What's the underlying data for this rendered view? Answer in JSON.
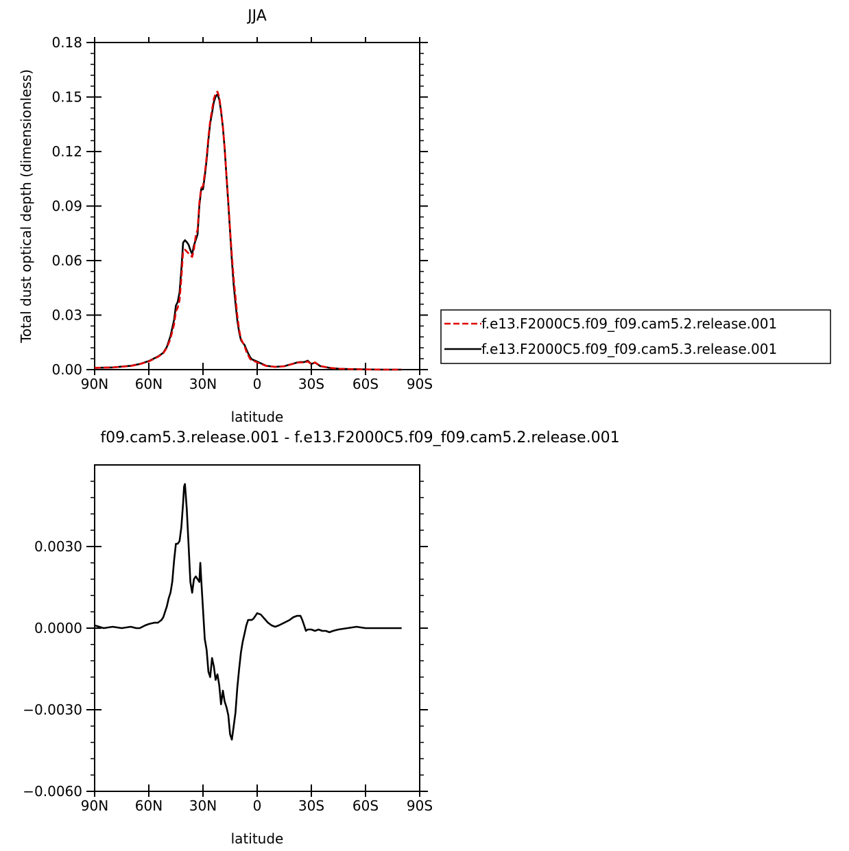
{
  "chart_data": [
    {
      "type": "line",
      "title": "JJA",
      "xlabel": "latitude",
      "ylabel": "Total dust optical depth (dimensionless)",
      "xlim": [
        90,
        -90
      ],
      "ylim": [
        0,
        0.18
      ],
      "xticks": [
        90,
        60,
        30,
        0,
        -30,
        -60,
        -90
      ],
      "xtick_labels": [
        "90N",
        "60N",
        "30N",
        "0",
        "30S",
        "60S",
        "90S"
      ],
      "yticks": [
        0,
        0.03,
        0.06,
        0.09,
        0.12,
        0.15,
        0.18
      ],
      "ytick_labels": [
        "0.00",
        "0.03",
        "0.06",
        "0.09",
        "0.12",
        "0.15",
        "0.18"
      ],
      "legend": "right",
      "series": [
        {
          "name": "f.e13.F2000C5.f09_f09.cam5.2.release.001",
          "color": "#e00000",
          "dash": "dashed",
          "x": [
            90,
            80,
            70,
            65,
            60,
            55,
            52,
            50,
            48,
            46,
            45,
            44,
            43,
            42,
            41,
            40,
            39,
            38,
            37,
            36,
            35,
            34,
            33,
            32,
            31,
            30,
            29,
            28,
            27,
            26,
            25,
            24,
            23,
            22,
            21,
            20,
            19,
            18,
            17,
            16,
            15,
            14,
            13,
            12,
            11,
            10,
            9,
            8,
            7,
            6,
            5,
            4,
            3,
            2,
            0,
            -5,
            -10,
            -15,
            -20,
            -22,
            -24,
            -26,
            -28,
            -30,
            -32,
            -35,
            -40,
            -45,
            -50,
            -60,
            -70,
            -80
          ],
          "values": [
            0.001,
            0.0012,
            0.002,
            0.003,
            0.0045,
            0.007,
            0.009,
            0.012,
            0.017,
            0.025,
            0.032,
            0.034,
            0.038,
            0.05,
            0.065,
            0.066,
            0.065,
            0.064,
            0.063,
            0.062,
            0.066,
            0.074,
            0.077,
            0.092,
            0.1,
            0.101,
            0.108,
            0.117,
            0.128,
            0.137,
            0.143,
            0.149,
            0.152,
            0.153,
            0.15,
            0.143,
            0.134,
            0.122,
            0.107,
            0.093,
            0.077,
            0.063,
            0.05,
            0.04,
            0.03,
            0.022,
            0.017,
            0.015,
            0.013,
            0.01,
            0.008,
            0.006,
            0.005,
            0.0048,
            0.004,
            0.002,
            0.0015,
            0.0018,
            0.0032,
            0.0038,
            0.004,
            0.0038,
            0.0045,
            0.003,
            0.004,
            0.002,
            0.001,
            0.0005,
            0.0003,
            0.0001,
            0.0,
            0.0
          ]
        },
        {
          "name": "f.e13.F2000C5.f09_f09.cam5.3.release.001",
          "color": "#000000",
          "dash": "solid",
          "x": [
            90,
            80,
            70,
            65,
            60,
            55,
            52,
            50,
            48,
            46,
            45,
            44,
            43,
            42,
            41,
            40,
            39,
            38,
            37,
            36,
            35,
            34,
            33,
            32,
            31,
            30,
            29,
            28,
            27,
            26,
            25,
            24,
            23,
            22,
            21,
            20,
            19,
            18,
            17,
            16,
            15,
            14,
            13,
            12,
            11,
            10,
            9,
            8,
            7,
            6,
            5,
            4,
            3,
            2,
            0,
            -5,
            -10,
            -15,
            -20,
            -22,
            -24,
            -26,
            -28,
            -30,
            -32,
            -35,
            -40,
            -45,
            -50,
            -60,
            -70,
            -80
          ],
          "values": [
            0.001,
            0.0012,
            0.0021,
            0.0031,
            0.0047,
            0.0072,
            0.0093,
            0.0125,
            0.0185,
            0.0275,
            0.0352,
            0.0372,
            0.0425,
            0.055,
            0.0698,
            0.0712,
            0.0702,
            0.0688,
            0.0658,
            0.0636,
            0.0684,
            0.0714,
            0.0744,
            0.0902,
            0.0993,
            0.0992,
            0.1064,
            0.1154,
            0.1264,
            0.1356,
            0.1412,
            0.1472,
            0.1502,
            0.1515,
            0.1487,
            0.1422,
            0.1334,
            0.1217,
            0.1065,
            0.0913,
            0.0758,
            0.0602,
            0.0463,
            0.0364,
            0.0272,
            0.0206,
            0.0163,
            0.0148,
            0.0136,
            0.0112,
            0.009,
            0.007,
            0.0057,
            0.0053,
            0.0044,
            0.0021,
            0.0015,
            0.0019,
            0.0033,
            0.0039,
            0.0042,
            0.0041,
            0.0049,
            0.0031,
            0.0039,
            0.0019,
            0.001,
            0.0005,
            0.0003,
            0.0001,
            0.0,
            0.0
          ]
        }
      ]
    },
    {
      "type": "line",
      "title": "f09.cam5.3.release.001 - f.e13.F2000C5.f09_f09.cam5.2.release.001",
      "xlabel": "latitude",
      "ylabel": "",
      "xlim": [
        90,
        -90
      ],
      "ylim": [
        -0.006,
        0.006
      ],
      "xticks": [
        90,
        60,
        30,
        0,
        -30,
        -60,
        -90
      ],
      "xtick_labels": [
        "90N",
        "60N",
        "30N",
        "0",
        "30S",
        "60S",
        "90S"
      ],
      "yticks": [
        -0.006,
        -0.003,
        0.0,
        0.003
      ],
      "ytick_labels": [
        "-0.0060",
        "-0.0030",
        "0.0000",
        "0.0030"
      ],
      "series": [
        {
          "color": "#000000",
          "dash": "solid",
          "x": [
            90,
            85,
            80,
            75,
            70,
            67,
            65,
            62,
            60,
            57,
            55,
            53,
            52,
            50,
            49,
            48,
            47,
            46,
            45,
            44,
            43,
            42,
            41,
            40.5,
            40,
            39,
            38,
            37,
            36,
            35,
            34,
            33,
            32,
            31.5,
            31,
            30,
            29,
            28,
            27,
            26,
            25,
            24,
            23,
            22,
            21,
            20,
            19,
            18,
            17,
            16,
            15,
            14,
            13,
            12,
            11,
            10,
            9,
            8,
            7,
            6,
            5,
            4,
            3,
            2,
            0,
            -2,
            -4,
            -6,
            -8,
            -10,
            -12,
            -15,
            -18,
            -20,
            -22,
            -24,
            -25,
            -26,
            -27,
            -28,
            -30,
            -32,
            -34,
            -36,
            -38,
            -40,
            -42,
            -45,
            -50,
            -55,
            -60,
            -70,
            -80
          ],
          "values": [
            0.0001,
            0.0,
            5e-05,
            0.0,
            5e-05,
            0.0,
            0.0,
            0.0001,
            0.00015,
            0.0002,
            0.0002,
            0.0003,
            0.0004,
            0.0008,
            0.0011,
            0.0013,
            0.0017,
            0.0025,
            0.0031,
            0.0031,
            0.0032,
            0.0037,
            0.0046,
            0.0052,
            0.0053,
            0.0044,
            0.0031,
            0.0017,
            0.0013,
            0.0018,
            0.0019,
            0.0018,
            0.0017,
            0.0024,
            0.0018,
            0.0007,
            -0.0004,
            -0.0008,
            -0.0016,
            -0.0018,
            -0.0011,
            -0.0014,
            -0.0019,
            -0.0017,
            -0.0021,
            -0.0028,
            -0.0023,
            -0.0027,
            -0.0029,
            -0.0032,
            -0.0039,
            -0.0041,
            -0.0036,
            -0.0031,
            -0.0022,
            -0.0015,
            -0.0009,
            -0.0005,
            -0.0002,
            0.0001,
            0.0003,
            0.0003,
            0.0003,
            0.00035,
            0.00055,
            0.0005,
            0.00035,
            0.0002,
            0.0001,
            5e-05,
            0.0001,
            0.0002,
            0.0003,
            0.0004,
            0.00045,
            0.00045,
            0.0003,
            0.0001,
            -0.0001,
            -5e-05,
            -5e-05,
            -0.0001,
            -5e-05,
            -0.0001,
            -0.0001,
            -0.00015,
            -0.0001,
            -5e-05,
            0.0,
            5e-05,
            0.0,
            0.0,
            0.0
          ]
        }
      ]
    }
  ]
}
